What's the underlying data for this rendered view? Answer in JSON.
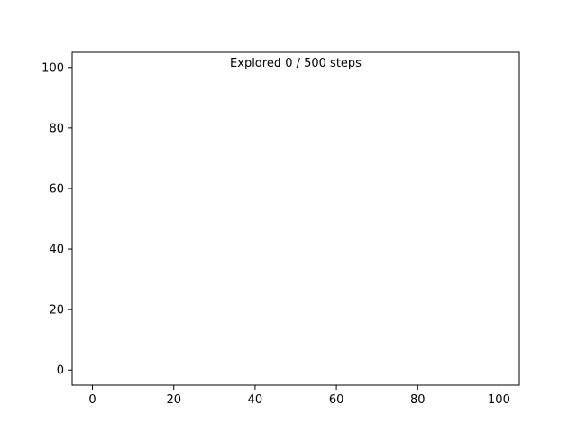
{
  "chart_data": {
    "type": "scatter",
    "title": "",
    "xlabel": "",
    "ylabel": "",
    "xlim": [
      -5,
      105
    ],
    "ylim": [
      -5,
      105
    ],
    "xticks": [
      0,
      20,
      40,
      60,
      80,
      100
    ],
    "yticks": [
      0,
      20,
      40,
      60,
      80,
      100
    ],
    "grid": false,
    "annotation": "Explored 0 / 500 steps",
    "series": [
      {
        "x": [],
        "y": []
      }
    ]
  },
  "colors": {
    "axes": "#000000",
    "background": "#ffffff"
  }
}
